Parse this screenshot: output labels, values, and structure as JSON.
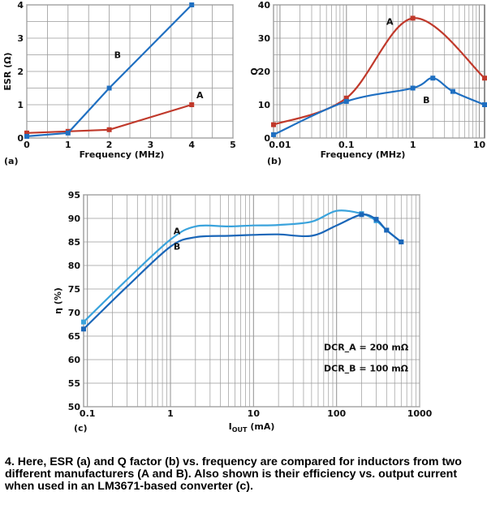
{
  "chart_data": [
    {
      "id": "a",
      "type": "line",
      "panel_label": "(a)",
      "xlabel": "Frequency (MHz)",
      "ylabel": "ESR (Ω)",
      "xlim": [
        0,
        5
      ],
      "ylim": [
        0,
        4
      ],
      "xticks": [
        "0",
        "1",
        "2",
        "3",
        "4",
        "5"
      ],
      "yticks": [
        "0",
        "1",
        "2",
        "3",
        "4"
      ],
      "grid": true,
      "series": [
        {
          "name": "A",
          "color": "#c0392b",
          "x": [
            0,
            1,
            2,
            4
          ],
          "y": [
            0.15,
            0.2,
            0.25,
            1.0
          ]
        },
        {
          "name": "B",
          "color": "#1f6fc1",
          "x": [
            0,
            1,
            2,
            4
          ],
          "y": [
            0.05,
            0.15,
            1.5,
            4.0
          ]
        }
      ]
    },
    {
      "id": "b",
      "type": "line",
      "panel_label": "(b)",
      "xlabel": "Frequency (MHz)",
      "ylabel": "Q",
      "xscale": "log",
      "xlim": [
        0.008,
        12
      ],
      "ylim": [
        0,
        40
      ],
      "xticks": [
        "0.01",
        "0.1",
        "1",
        "10"
      ],
      "yticks": [
        "0",
        "10",
        "20",
        "30",
        "40"
      ],
      "grid": true,
      "series": [
        {
          "name": "A",
          "color": "#c0392b",
          "x": [
            0.008,
            0.1,
            1,
            12
          ],
          "y": [
            4,
            12,
            36,
            18
          ]
        },
        {
          "name": "B",
          "color": "#1f6fc1",
          "x": [
            0.008,
            0.1,
            1,
            2,
            4,
            12
          ],
          "y": [
            1,
            11,
            15,
            18,
            14,
            10
          ]
        }
      ]
    },
    {
      "id": "c",
      "type": "line",
      "panel_label": "(c)",
      "xlabel_main": "I",
      "xlabel_sub": "OUT",
      "xlabel_unit": " (mA)",
      "ylabel": "η (%)",
      "xscale": "log",
      "xlim": [
        0.09,
        1000
      ],
      "ylim": [
        50,
        95
      ],
      "xticks": [
        "0.1",
        "1",
        "10",
        "100",
        "1000"
      ],
      "yticks": [
        "50",
        "55",
        "60",
        "65",
        "70",
        "75",
        "80",
        "85",
        "90",
        "95"
      ],
      "grid": true,
      "annotations": [
        "DCR_A = 200 mΩ",
        "DCR_B = 100 mΩ"
      ],
      "series": [
        {
          "name": "A",
          "color": "#3aa3dc",
          "x": [
            0.09,
            0.3,
            1,
            2,
            5,
            10,
            20,
            50,
            100,
            200,
            300,
            400,
            600
          ],
          "y": [
            68,
            77,
            85.5,
            88.3,
            88.3,
            88.5,
            88.6,
            89.3,
            91.6,
            91,
            89.5,
            87.5,
            85
          ]
        },
        {
          "name": "B",
          "color": "#1a66b8",
          "x": [
            0.09,
            0.3,
            1,
            2,
            5,
            10,
            20,
            50,
            100,
            200,
            300,
            400,
            600
          ],
          "y": [
            66.5,
            75.5,
            84,
            86,
            86.3,
            86.5,
            86.6,
            86.3,
            88.5,
            90.8,
            89.8,
            87.5,
            85
          ]
        }
      ]
    }
  ],
  "caption": "4. Here, ESR (a) and Q factor (b) vs. frequency are compared for inductors from two different manufacturers (A and B). Also shown is their efficiency vs. output current when used in an LM3671-based converter (c)."
}
